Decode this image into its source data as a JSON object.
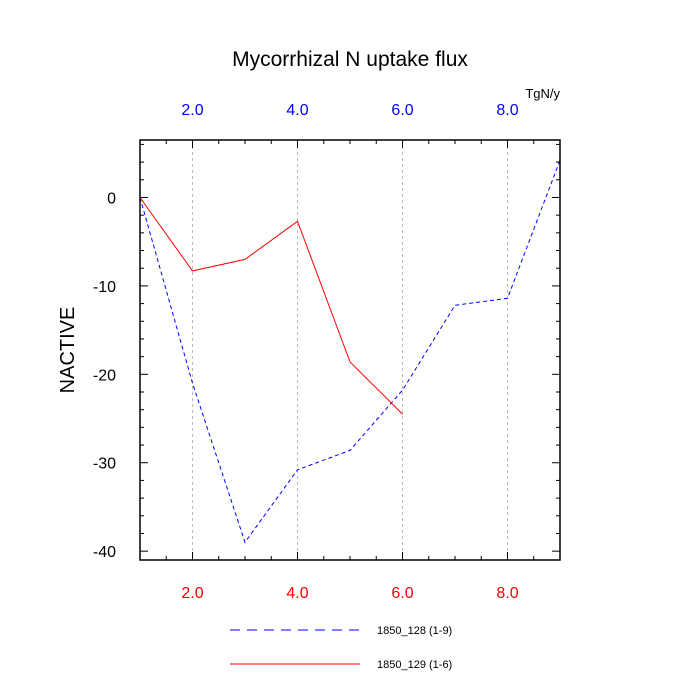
{
  "chart_data": {
    "type": "line",
    "title": "Mycorrhizal N uptake flux",
    "units": "TgN/y",
    "ylabel": "NACTIVE",
    "xlabel": "",
    "xlim": [
      1,
      9
    ],
    "ylim": [
      -41,
      6.5
    ],
    "x_ticks": [
      2.0,
      4.0,
      6.0,
      8.0
    ],
    "x_tick_labels": [
      "2.0",
      "4.0",
      "6.0",
      "8.0"
    ],
    "top_tick_color": "#0000ff",
    "bottom_tick_color": "#ff0000",
    "y_ticks": [
      0,
      -10,
      -20,
      -30,
      -40
    ],
    "y_tick_labels": [
      "0",
      "-10",
      "-20",
      "-30",
      "-40"
    ],
    "vertical_gridlines": true,
    "series": [
      {
        "name": "1850_128 (1-9)",
        "color": "#0000ff",
        "dash": "dashed",
        "x": [
          1,
          2,
          3,
          4,
          5,
          6,
          7,
          8,
          9
        ],
        "y": [
          0.0,
          -21.0,
          -39.0,
          -30.8,
          -28.6,
          -21.8,
          -12.2,
          -11.4,
          4.2
        ]
      },
      {
        "name": "1850_129 (1-6)",
        "color": "#ff0000",
        "dash": "solid",
        "x": [
          1,
          2,
          3,
          4,
          5,
          6
        ],
        "y": [
          0.0,
          -8.3,
          -7.0,
          -2.7,
          -18.6,
          -24.5
        ]
      }
    ]
  }
}
